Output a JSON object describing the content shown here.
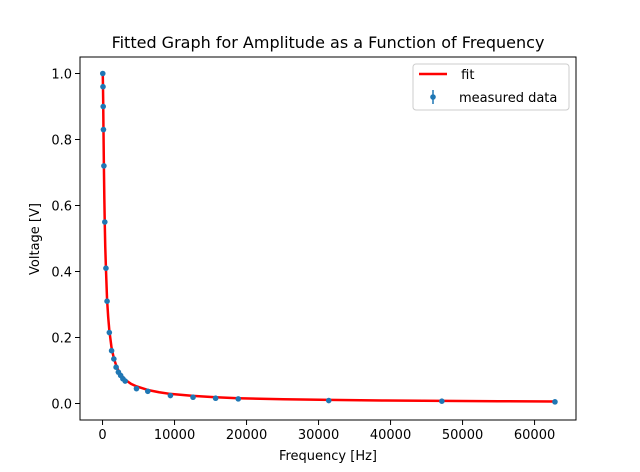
{
  "chart_data": {
    "type": "scatter",
    "title": "Fitted Graph for Amplitude as a Function of Frequency",
    "xlabel": "Frequency [Hz]",
    "ylabel": "Voltage [V]",
    "xlim": [
      -3130,
      65755
    ],
    "ylim": [
      -0.05,
      1.05
    ],
    "xticks": [
      0,
      10000,
      20000,
      30000,
      40000,
      50000,
      60000
    ],
    "xtick_labels": [
      "0",
      "10000",
      "20000",
      "30000",
      "40000",
      "50000",
      "60000"
    ],
    "yticks": [
      0.0,
      0.2,
      0.4,
      0.6,
      0.8,
      1.0
    ],
    "ytick_labels": [
      "0.0",
      "0.2",
      "0.4",
      "0.6",
      "0.8",
      "1.0"
    ],
    "grid": false,
    "legend": {
      "position": "top-right",
      "entries": [
        {
          "label": " fit",
          "kind": "line",
          "color": "#ff0000"
        },
        {
          "label": "measured data",
          "kind": "errorbar-marker",
          "color": "#1f77b4"
        }
      ]
    },
    "series": [
      {
        "name": "measured data",
        "type": "scatter",
        "color": "#1f77b4",
        "x": [
          31,
          63,
          94,
          126,
          188,
          314,
          471,
          628,
          942,
          1257,
          1571,
          1885,
          2199,
          2513,
          2827,
          3142,
          4712,
          6283,
          9425,
          12566,
          15708,
          18850,
          31416,
          47124,
          62832
        ],
        "y": [
          1.0,
          0.96,
          0.9,
          0.83,
          0.72,
          0.55,
          0.41,
          0.31,
          0.215,
          0.16,
          0.135,
          0.11,
          0.095,
          0.085,
          0.075,
          0.068,
          0.045,
          0.037,
          0.024,
          0.019,
          0.016,
          0.014,
          0.009,
          0.007,
          0.005
        ]
      },
      {
        "name": "fit",
        "type": "line",
        "color": "#ff0000",
        "x": [
          31,
          63,
          94,
          126,
          188,
          251,
          314,
          377,
          471,
          628,
          785,
          942,
          1257,
          1571,
          1885,
          2199,
          2513,
          2827,
          3142,
          3927,
          4712,
          6283,
          7854,
          9425,
          12566,
          15708,
          18850,
          25133,
          31416,
          39270,
          47124,
          55000,
          62832
        ],
        "y": [
          1.0,
          0.96,
          0.91,
          0.84,
          0.72,
          0.62,
          0.54,
          0.475,
          0.41,
          0.315,
          0.262,
          0.222,
          0.168,
          0.137,
          0.116,
          0.1,
          0.089,
          0.08,
          0.072,
          0.06,
          0.052,
          0.041,
          0.034,
          0.029,
          0.023,
          0.019,
          0.016,
          0.013,
          0.011,
          0.009,
          0.008,
          0.007,
          0.006
        ]
      }
    ]
  }
}
